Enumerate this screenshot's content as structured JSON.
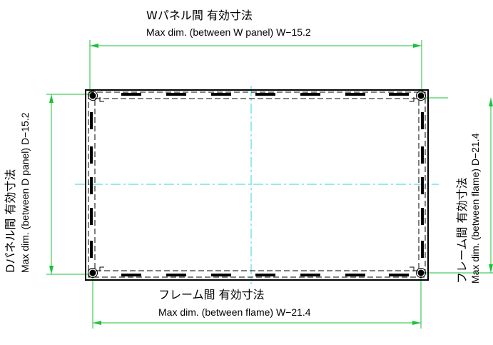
{
  "labels": {
    "w_panel_jp": "Wパネル間 有効寸法",
    "w_panel_en": "Max dim. (between W panel) W−15.2",
    "d_panel_jp": "Dパネル間 有効寸法",
    "d_panel_en": "Max dim. (between D panel) D−15.2",
    "w_frame_jp": "フレーム間 有効寸法",
    "w_frame_en": "Max dim. (between flame) W−21.4",
    "d_frame_jp": "フレーム間 有効寸法",
    "d_frame_en": "Max dim. (between flame) D−21.4"
  },
  "colors": {
    "dimension": "#19c23a",
    "centerline": "#33d6d6",
    "outline": "#000000"
  }
}
